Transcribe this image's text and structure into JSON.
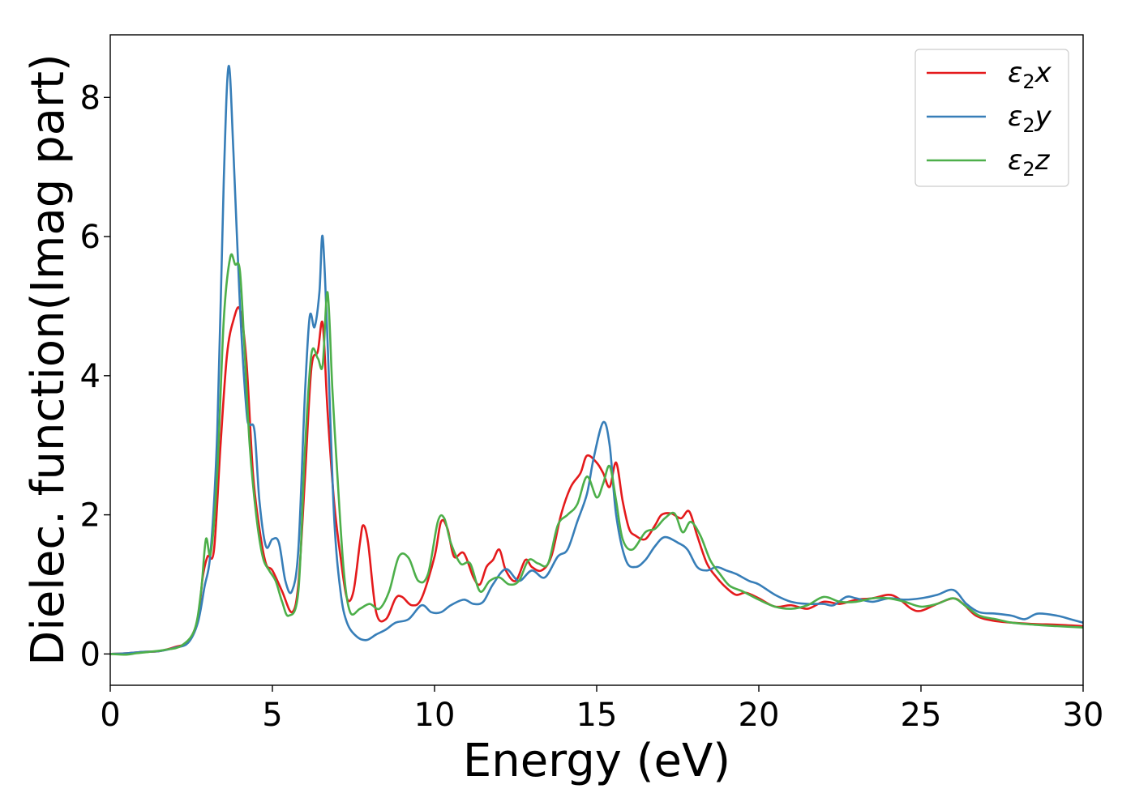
{
  "chart_data": {
    "type": "line",
    "xlabel": "Energy (eV)",
    "ylabel": "Dielec. function(Imag part)",
    "xlim": [
      0,
      30
    ],
    "ylim": [
      -0.45,
      8.9
    ],
    "xticks": [
      0,
      5,
      10,
      15,
      20,
      25,
      30
    ],
    "xtick_labels": [
      "0",
      "5",
      "10",
      "15",
      "20",
      "25",
      "30"
    ],
    "yticks": [
      0,
      2,
      4,
      6,
      8
    ],
    "ytick_labels": [
      "0",
      "2",
      "4",
      "6",
      "8"
    ],
    "grid": false,
    "legend": "top-right",
    "colors": [
      "#e41a1c",
      "#377eb8",
      "#4daf4a"
    ],
    "series": [
      {
        "name": "ε₂x",
        "legend_main": "ε",
        "legend_sub": "2",
        "legend_var": "x",
        "points": [
          [
            0,
            0
          ],
          [
            0.5,
            0.01
          ],
          [
            1,
            0.03
          ],
          [
            1.5,
            0.04
          ],
          [
            2,
            0.1
          ],
          [
            2.4,
            0.18
          ],
          [
            2.7,
            0.5
          ],
          [
            2.85,
            1.1
          ],
          [
            3.0,
            1.4
          ],
          [
            3.2,
            1.5
          ],
          [
            3.4,
            3.0
          ],
          [
            3.6,
            4.3
          ],
          [
            3.8,
            4.8
          ],
          [
            4.0,
            4.95
          ],
          [
            4.2,
            4.2
          ],
          [
            4.4,
            2.6
          ],
          [
            4.6,
            1.8
          ],
          [
            4.8,
            1.3
          ],
          [
            5.0,
            1.2
          ],
          [
            5.3,
            0.9
          ],
          [
            5.6,
            0.6
          ],
          [
            5.8,
            1.0
          ],
          [
            6.0,
            2.5
          ],
          [
            6.2,
            4.1
          ],
          [
            6.4,
            4.35
          ],
          [
            6.55,
            4.75
          ],
          [
            6.7,
            3.5
          ],
          [
            6.9,
            2.2
          ],
          [
            7.1,
            1.4
          ],
          [
            7.3,
            0.8
          ],
          [
            7.5,
            0.9
          ],
          [
            7.7,
            1.6
          ],
          [
            7.8,
            1.85
          ],
          [
            7.95,
            1.6
          ],
          [
            8.2,
            0.6
          ],
          [
            8.5,
            0.5
          ],
          [
            8.8,
            0.8
          ],
          [
            9.0,
            0.82
          ],
          [
            9.3,
            0.7
          ],
          [
            9.6,
            0.8
          ],
          [
            10.0,
            1.4
          ],
          [
            10.2,
            1.9
          ],
          [
            10.4,
            1.8
          ],
          [
            10.6,
            1.4
          ],
          [
            10.9,
            1.45
          ],
          [
            11.2,
            1.1
          ],
          [
            11.4,
            1.0
          ],
          [
            11.6,
            1.25
          ],
          [
            11.8,
            1.35
          ],
          [
            12.0,
            1.5
          ],
          [
            12.2,
            1.2
          ],
          [
            12.5,
            1.05
          ],
          [
            12.8,
            1.35
          ],
          [
            13.0,
            1.25
          ],
          [
            13.3,
            1.2
          ],
          [
            13.6,
            1.4
          ],
          [
            13.9,
            2.0
          ],
          [
            14.2,
            2.4
          ],
          [
            14.5,
            2.6
          ],
          [
            14.7,
            2.85
          ],
          [
            15.0,
            2.75
          ],
          [
            15.2,
            2.6
          ],
          [
            15.4,
            2.4
          ],
          [
            15.6,
            2.75
          ],
          [
            15.8,
            2.2
          ],
          [
            16.0,
            1.8
          ],
          [
            16.2,
            1.7
          ],
          [
            16.5,
            1.65
          ],
          [
            16.8,
            1.85
          ],
          [
            17.0,
            2.0
          ],
          [
            17.3,
            2.02
          ],
          [
            17.6,
            1.95
          ],
          [
            17.85,
            2.05
          ],
          [
            18.1,
            1.7
          ],
          [
            18.4,
            1.3
          ],
          [
            18.7,
            1.1
          ],
          [
            19.0,
            0.95
          ],
          [
            19.3,
            0.85
          ],
          [
            19.6,
            0.88
          ],
          [
            20.0,
            0.8
          ],
          [
            20.5,
            0.68
          ],
          [
            21.0,
            0.7
          ],
          [
            21.5,
            0.65
          ],
          [
            22.0,
            0.75
          ],
          [
            22.5,
            0.72
          ],
          [
            23.0,
            0.78
          ],
          [
            23.5,
            0.8
          ],
          [
            24.0,
            0.85
          ],
          [
            24.3,
            0.8
          ],
          [
            24.7,
            0.65
          ],
          [
            25.0,
            0.62
          ],
          [
            25.5,
            0.72
          ],
          [
            26.0,
            0.8
          ],
          [
            26.3,
            0.72
          ],
          [
            26.7,
            0.55
          ],
          [
            27.2,
            0.48
          ],
          [
            27.8,
            0.45
          ],
          [
            28.5,
            0.43
          ],
          [
            29.2,
            0.42
          ],
          [
            30,
            0.4
          ]
        ]
      },
      {
        "name": "ε₂y",
        "legend_main": "ε",
        "legend_sub": "2",
        "legend_var": "y",
        "points": [
          [
            0,
            0
          ],
          [
            0.5,
            0.01
          ],
          [
            1,
            0.03
          ],
          [
            1.5,
            0.04
          ],
          [
            2,
            0.09
          ],
          [
            2.4,
            0.16
          ],
          [
            2.7,
            0.45
          ],
          [
            2.9,
            0.95
          ],
          [
            3.1,
            1.5
          ],
          [
            3.3,
            3.2
          ],
          [
            3.5,
            6.8
          ],
          [
            3.65,
            8.45
          ],
          [
            3.8,
            7.2
          ],
          [
            4.0,
            5.0
          ],
          [
            4.2,
            3.5
          ],
          [
            4.3,
            3.3
          ],
          [
            4.45,
            3.2
          ],
          [
            4.6,
            2.2
          ],
          [
            4.8,
            1.55
          ],
          [
            5.0,
            1.65
          ],
          [
            5.2,
            1.6
          ],
          [
            5.4,
            1.05
          ],
          [
            5.6,
            0.9
          ],
          [
            5.8,
            1.5
          ],
          [
            6.0,
            3.7
          ],
          [
            6.15,
            4.85
          ],
          [
            6.3,
            4.7
          ],
          [
            6.45,
            5.2
          ],
          [
            6.55,
            6.0
          ],
          [
            6.7,
            4.5
          ],
          [
            6.9,
            2.0
          ],
          [
            7.1,
            0.9
          ],
          [
            7.3,
            0.45
          ],
          [
            7.6,
            0.25
          ],
          [
            7.9,
            0.2
          ],
          [
            8.2,
            0.28
          ],
          [
            8.5,
            0.35
          ],
          [
            8.8,
            0.45
          ],
          [
            9.2,
            0.5
          ],
          [
            9.6,
            0.7
          ],
          [
            9.9,
            0.6
          ],
          [
            10.2,
            0.6
          ],
          [
            10.5,
            0.7
          ],
          [
            10.9,
            0.78
          ],
          [
            11.2,
            0.72
          ],
          [
            11.5,
            0.75
          ],
          [
            11.8,
            1.0
          ],
          [
            12.2,
            1.22
          ],
          [
            12.6,
            1.05
          ],
          [
            13.0,
            1.2
          ],
          [
            13.4,
            1.1
          ],
          [
            13.8,
            1.4
          ],
          [
            14.1,
            1.5
          ],
          [
            14.4,
            1.9
          ],
          [
            14.7,
            2.3
          ],
          [
            14.9,
            2.8
          ],
          [
            15.2,
            3.33
          ],
          [
            15.4,
            3.0
          ],
          [
            15.6,
            2.0
          ],
          [
            15.9,
            1.35
          ],
          [
            16.2,
            1.25
          ],
          [
            16.5,
            1.35
          ],
          [
            16.8,
            1.55
          ],
          [
            17.1,
            1.68
          ],
          [
            17.5,
            1.6
          ],
          [
            17.8,
            1.5
          ],
          [
            18.1,
            1.25
          ],
          [
            18.4,
            1.2
          ],
          [
            18.7,
            1.25
          ],
          [
            19.0,
            1.2
          ],
          [
            19.3,
            1.15
          ],
          [
            19.7,
            1.05
          ],
          [
            20.0,
            1.0
          ],
          [
            20.5,
            0.85
          ],
          [
            21.0,
            0.75
          ],
          [
            21.5,
            0.72
          ],
          [
            22.0,
            0.72
          ],
          [
            22.3,
            0.7
          ],
          [
            22.7,
            0.82
          ],
          [
            23.0,
            0.8
          ],
          [
            23.5,
            0.75
          ],
          [
            24.0,
            0.8
          ],
          [
            24.5,
            0.78
          ],
          [
            25.0,
            0.8
          ],
          [
            25.5,
            0.85
          ],
          [
            26.0,
            0.92
          ],
          [
            26.4,
            0.72
          ],
          [
            26.8,
            0.6
          ],
          [
            27.3,
            0.58
          ],
          [
            27.8,
            0.55
          ],
          [
            28.2,
            0.5
          ],
          [
            28.6,
            0.58
          ],
          [
            29.2,
            0.55
          ],
          [
            29.6,
            0.5
          ],
          [
            30,
            0.45
          ]
        ]
      },
      {
        "name": "ε₂z",
        "legend_main": "ε",
        "legend_sub": "2",
        "legend_var": "z",
        "points": [
          [
            0,
            0
          ],
          [
            0.5,
            -0.01
          ],
          [
            0.8,
            0.01
          ],
          [
            1.2,
            0.03
          ],
          [
            1.7,
            0.06
          ],
          [
            2.2,
            0.12
          ],
          [
            2.6,
            0.35
          ],
          [
            2.8,
            0.9
          ],
          [
            2.95,
            1.65
          ],
          [
            3.1,
            1.45
          ],
          [
            3.3,
            2.6
          ],
          [
            3.5,
            4.8
          ],
          [
            3.7,
            5.7
          ],
          [
            3.85,
            5.6
          ],
          [
            4.0,
            5.5
          ],
          [
            4.15,
            4.3
          ],
          [
            4.3,
            3.0
          ],
          [
            4.5,
            2.0
          ],
          [
            4.7,
            1.4
          ],
          [
            4.9,
            1.2
          ],
          [
            5.1,
            1.05
          ],
          [
            5.3,
            0.75
          ],
          [
            5.5,
            0.55
          ],
          [
            5.8,
            0.9
          ],
          [
            6.0,
            2.9
          ],
          [
            6.2,
            4.3
          ],
          [
            6.4,
            4.25
          ],
          [
            6.55,
            4.15
          ],
          [
            6.7,
            5.2
          ],
          [
            6.85,
            3.8
          ],
          [
            7.0,
            2.6
          ],
          [
            7.2,
            1.2
          ],
          [
            7.4,
            0.6
          ],
          [
            7.7,
            0.65
          ],
          [
            8.0,
            0.72
          ],
          [
            8.3,
            0.65
          ],
          [
            8.6,
            0.9
          ],
          [
            8.9,
            1.4
          ],
          [
            9.2,
            1.38
          ],
          [
            9.5,
            1.05
          ],
          [
            9.8,
            1.15
          ],
          [
            10.1,
            1.9
          ],
          [
            10.3,
            1.95
          ],
          [
            10.5,
            1.6
          ],
          [
            10.8,
            1.3
          ],
          [
            11.1,
            1.3
          ],
          [
            11.4,
            0.9
          ],
          [
            11.7,
            1.05
          ],
          [
            12.0,
            1.1
          ],
          [
            12.3,
            1.0
          ],
          [
            12.6,
            1.05
          ],
          [
            12.9,
            1.35
          ],
          [
            13.2,
            1.3
          ],
          [
            13.5,
            1.3
          ],
          [
            13.8,
            1.85
          ],
          [
            14.1,
            2.0
          ],
          [
            14.4,
            2.15
          ],
          [
            14.7,
            2.55
          ],
          [
            15.0,
            2.25
          ],
          [
            15.2,
            2.45
          ],
          [
            15.4,
            2.7
          ],
          [
            15.6,
            2.2
          ],
          [
            15.8,
            1.65
          ],
          [
            16.1,
            1.5
          ],
          [
            16.5,
            1.75
          ],
          [
            16.8,
            1.8
          ],
          [
            17.1,
            1.95
          ],
          [
            17.4,
            2.02
          ],
          [
            17.65,
            1.75
          ],
          [
            17.9,
            1.9
          ],
          [
            18.2,
            1.7
          ],
          [
            18.5,
            1.35
          ],
          [
            18.8,
            1.15
          ],
          [
            19.1,
            0.98
          ],
          [
            19.5,
            0.9
          ],
          [
            20.0,
            0.78
          ],
          [
            20.5,
            0.68
          ],
          [
            21.0,
            0.65
          ],
          [
            21.5,
            0.7
          ],
          [
            22.0,
            0.82
          ],
          [
            22.5,
            0.75
          ],
          [
            23.0,
            0.75
          ],
          [
            23.5,
            0.8
          ],
          [
            24.0,
            0.8
          ],
          [
            24.5,
            0.75
          ],
          [
            25.0,
            0.68
          ],
          [
            25.5,
            0.72
          ],
          [
            26.0,
            0.8
          ],
          [
            26.4,
            0.68
          ],
          [
            26.8,
            0.55
          ],
          [
            27.3,
            0.5
          ],
          [
            27.8,
            0.45
          ],
          [
            28.5,
            0.42
          ],
          [
            29.2,
            0.4
          ],
          [
            30,
            0.38
          ]
        ]
      }
    ]
  }
}
